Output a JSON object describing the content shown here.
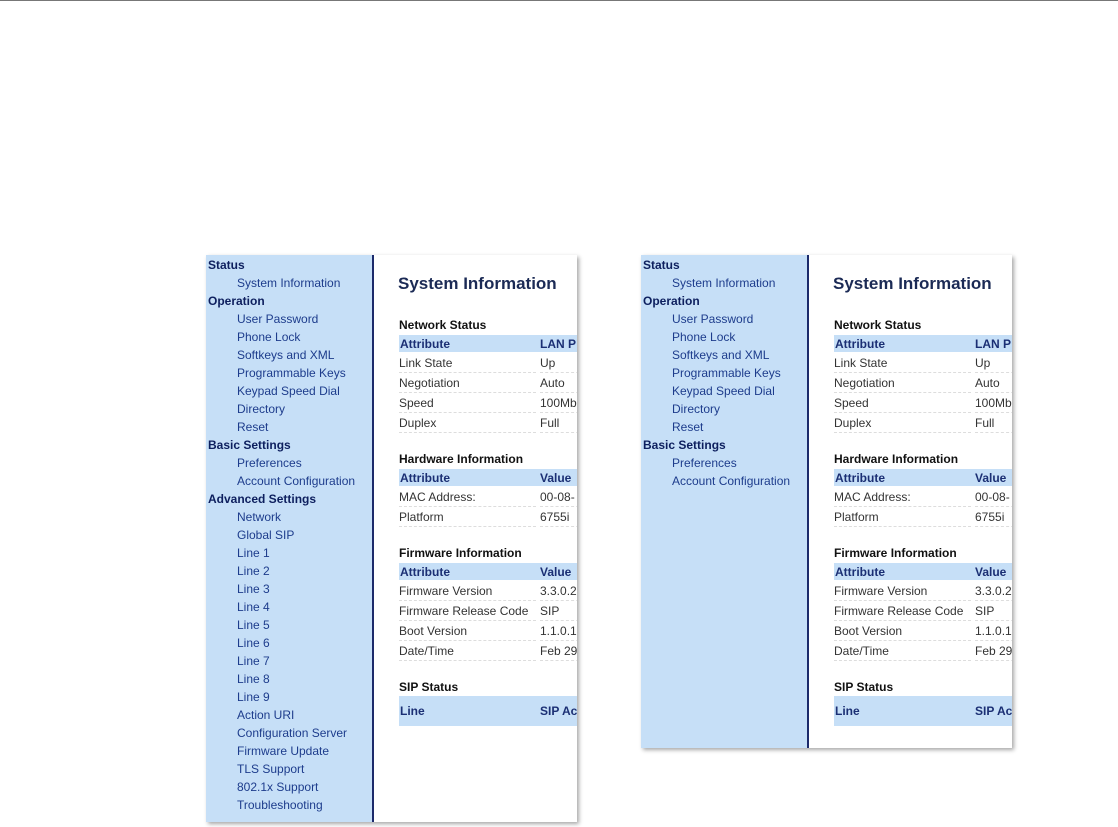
{
  "panels": [
    {
      "nav": [
        {
          "group": "Status",
          "items": [
            "System Information"
          ]
        },
        {
          "group": "Operation",
          "items": [
            "User Password",
            "Phone Lock",
            "Softkeys and XML",
            "Programmable Keys",
            "Keypad Speed Dial",
            "Directory",
            "Reset"
          ]
        },
        {
          "group": "Basic Settings",
          "items": [
            "Preferences",
            "Account Configuration"
          ]
        },
        {
          "group": "Advanced Settings",
          "items": [
            "Network",
            "Global SIP",
            "Line 1",
            "Line 2",
            "Line 3",
            "Line 4",
            "Line 5",
            "Line 6",
            "Line 7",
            "Line 8",
            "Line 9",
            "Action URI",
            "Configuration Server",
            "Firmware Update",
            "TLS Support",
            "802.1x Support",
            "Troubleshooting"
          ]
        }
      ],
      "content": {
        "title": "System Information",
        "sections": [
          {
            "heading": "Network Status",
            "header": [
              "Attribute",
              "LAN P"
            ],
            "rows": [
              [
                "Link State",
                "Up"
              ],
              [
                "Negotiation",
                "Auto"
              ],
              [
                "Speed",
                "100Mb"
              ],
              [
                "Duplex",
                "Full"
              ]
            ]
          },
          {
            "heading": "Hardware Information",
            "header": [
              "Attribute",
              "Value"
            ],
            "rows": [
              [
                "MAC Address:",
                "00-08-"
              ],
              [
                "Platform",
                "6755i"
              ]
            ]
          },
          {
            "heading": "Firmware Information",
            "header": [
              "Attribute",
              "Value"
            ],
            "rows": [
              [
                "Firmware Version",
                "3.3.0.2"
              ],
              [
                "Firmware Release Code",
                "SIP"
              ],
              [
                "Boot Version",
                "1.1.0.1"
              ],
              [
                "Date/Time",
                "Feb 29"
              ]
            ]
          },
          {
            "heading": "SIP Status",
            "header": [
              "Line",
              "SIP Ac"
            ],
            "rows": []
          }
        ]
      }
    },
    {
      "nav": [
        {
          "group": "Status",
          "items": [
            "System Information"
          ]
        },
        {
          "group": "Operation",
          "items": [
            "User Password",
            "Phone Lock",
            "Softkeys and XML",
            "Programmable Keys",
            "Keypad Speed Dial",
            "Directory",
            "Reset"
          ]
        },
        {
          "group": "Basic Settings",
          "items": [
            "Preferences",
            "Account Configuration"
          ]
        }
      ],
      "content": {
        "title": "System Information",
        "sections": [
          {
            "heading": "Network Status",
            "header": [
              "Attribute",
              "LAN P"
            ],
            "rows": [
              [
                "Link State",
                "Up"
              ],
              [
                "Negotiation",
                "Auto"
              ],
              [
                "Speed",
                "100Mb"
              ],
              [
                "Duplex",
                "Full"
              ]
            ]
          },
          {
            "heading": "Hardware Information",
            "header": [
              "Attribute",
              "Value"
            ],
            "rows": [
              [
                "MAC Address:",
                "00-08-"
              ],
              [
                "Platform",
                "6755i"
              ]
            ]
          },
          {
            "heading": "Firmware Information",
            "header": [
              "Attribute",
              "Value"
            ],
            "rows": [
              [
                "Firmware Version",
                "3.3.0.2"
              ],
              [
                "Firmware Release Code",
                "SIP"
              ],
              [
                "Boot Version",
                "1.1.0.1"
              ],
              [
                "Date/Time",
                "Feb 29"
              ]
            ]
          },
          {
            "heading": "SIP Status",
            "header": [
              "Line",
              "SIP Ac"
            ],
            "rows": []
          }
        ]
      }
    }
  ]
}
